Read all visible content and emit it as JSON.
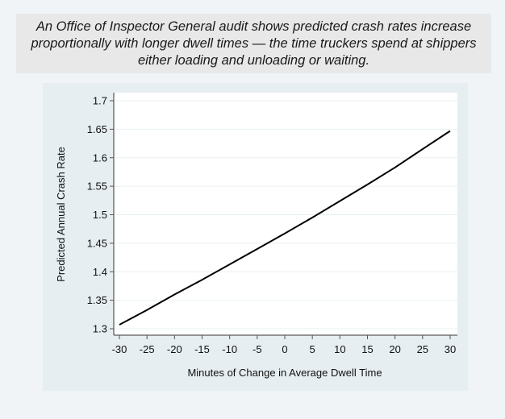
{
  "caption": "An Office of Inspector General audit shows predicted crash rates increase proportionally with longer dwell times — the time truckers spend at shippers either loading and unloading or waiting.",
  "chart_data": {
    "type": "line",
    "title": "",
    "xlabel": "Minutes of Change in Average Dwell Time",
    "ylabel": "Predicted Annual Crash Rate",
    "xlim": [
      -30,
      30
    ],
    "ylim": [
      1.3,
      1.7
    ],
    "x_ticks": [
      -30,
      -25,
      -20,
      -15,
      -10,
      -5,
      0,
      5,
      10,
      15,
      20,
      25,
      30
    ],
    "x_tick_labels": [
      "-30",
      "-25",
      "-20",
      "-15",
      "-10",
      "-5",
      "0",
      "5",
      "10",
      "15",
      "20",
      "25",
      "30"
    ],
    "y_ticks": [
      1.3,
      1.35,
      1.4,
      1.45,
      1.5,
      1.55,
      1.6,
      1.65,
      1.7
    ],
    "y_tick_labels": [
      "1.3",
      "1.35",
      "1.4",
      "1.45",
      "1.5",
      "1.55",
      "1.6",
      "1.65",
      "1.7"
    ],
    "grid": "horizontal",
    "legend": "none",
    "series": [
      {
        "name": "Predicted Annual Crash Rate",
        "color": "#000000",
        "x": [
          -30,
          -25,
          -20,
          -15,
          -10,
          -5,
          0,
          5,
          10,
          15,
          20,
          25,
          30
        ],
        "values": [
          1.307,
          1.333,
          1.36,
          1.386,
          1.413,
          1.44,
          1.467,
          1.495,
          1.524,
          1.553,
          1.583,
          1.615,
          1.647
        ]
      }
    ]
  }
}
